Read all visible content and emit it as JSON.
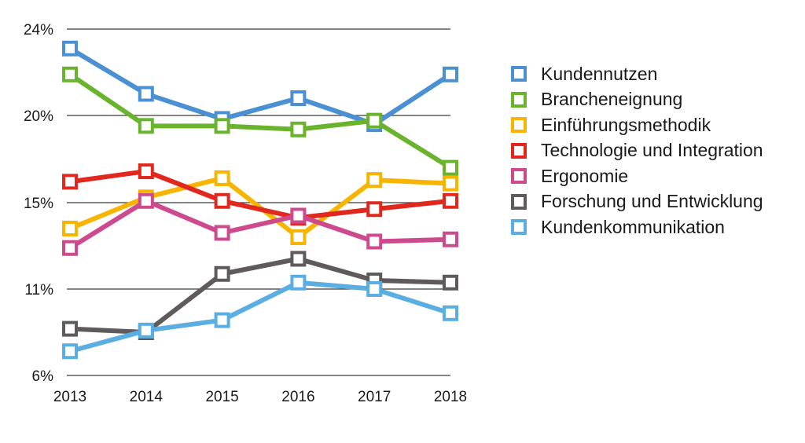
{
  "chart_data": {
    "type": "line",
    "categories": [
      "2013",
      "2014",
      "2015",
      "2016",
      "2017",
      "2018"
    ],
    "y_ticks": [
      {
        "value": 6,
        "label": "6%"
      },
      {
        "value": 11,
        "label": "11%"
      },
      {
        "value": 15,
        "label": "15%"
      },
      {
        "value": 20,
        "label": "20%"
      },
      {
        "value": 24,
        "label": "24%"
      }
    ],
    "ylim": [
      6,
      24
    ],
    "grid": "horizontal",
    "legend_position": "right",
    "marker": "hollow-square",
    "series": [
      {
        "name": "Kundennutzen",
        "color": "#4a90d2",
        "values": [
          23.1,
          21.0,
          19.8,
          20.8,
          19.5,
          21.9
        ]
      },
      {
        "name": "Brancheneignung",
        "color": "#6ab42d",
        "values": [
          21.9,
          19.4,
          19.4,
          19.2,
          19.7,
          17.0
        ]
      },
      {
        "name": "Einführungsmethodik",
        "color": "#f7b500",
        "values": [
          13.8,
          15.3,
          16.4,
          13.4,
          16.3,
          16.1
        ]
      },
      {
        "name": "Technologie und Integration",
        "color": "#e0281e",
        "values": [
          16.2,
          16.8,
          15.1,
          14.3,
          14.7,
          15.1
        ]
      },
      {
        "name": "Ergonomie",
        "color": "#cc4a8d",
        "values": [
          12.9,
          15.1,
          13.6,
          14.4,
          13.2,
          13.3
        ]
      },
      {
        "name": "Forschung und Entwicklung",
        "color": "#5f5b5b",
        "values": [
          8.7,
          8.5,
          11.7,
          12.4,
          11.4,
          11.3
        ]
      },
      {
        "name": "Kundenkommunikation",
        "color": "#5aaee2",
        "values": [
          7.4,
          8.6,
          9.2,
          11.3,
          11.0,
          9.6
        ]
      }
    ]
  }
}
